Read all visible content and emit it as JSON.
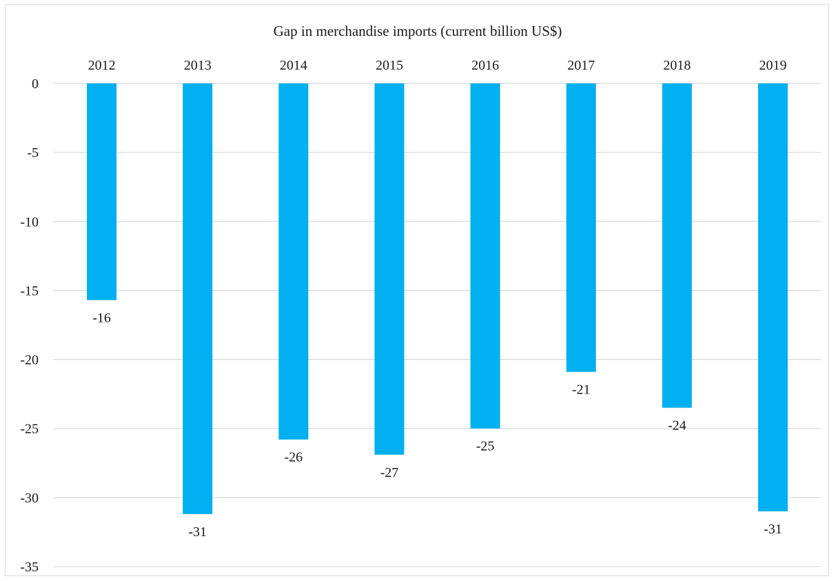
{
  "chart_data": {
    "type": "bar",
    "title": "Gap in merchandise imports (current billion US$)",
    "categories": [
      "2012",
      "2013",
      "2014",
      "2015",
      "2016",
      "2017",
      "2018",
      "2019"
    ],
    "series": [
      {
        "values": [
          -15.7,
          -31.2,
          -25.8,
          -26.9,
          -25.0,
          -20.9,
          -23.5,
          -31.0
        ],
        "data_labels": [
          "-16",
          "-31",
          "-26",
          "-27",
          "-25",
          "-21",
          "-24",
          "-31"
        ]
      }
    ],
    "ylim": [
      -35,
      0
    ],
    "yticks": [
      0,
      -5,
      -10,
      -15,
      -20,
      -25,
      -30,
      -35
    ],
    "ytick_labels": [
      "0",
      "-5",
      "-10",
      "-15",
      "-20",
      "-25",
      "-30",
      "-35"
    ],
    "category_axis_position": "top",
    "bar_color": "#00B0F0",
    "gridlines": true,
    "legend": "none"
  }
}
